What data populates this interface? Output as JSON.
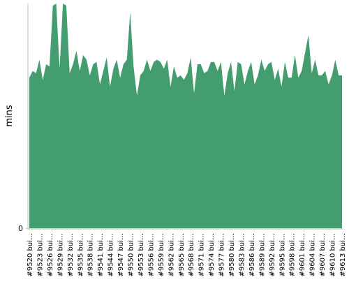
{
  "chart_data": {
    "type": "area",
    "y_label": "mins",
    "color": "#449d6e",
    "categories": [
      "#9520 bui…",
      null,
      null,
      "#9523 bui…",
      null,
      null,
      "#9526 bui…",
      null,
      null,
      "#9529 bui…",
      null,
      null,
      "#9532 bui…",
      null,
      null,
      "#9535 bui…",
      null,
      null,
      "#9538 bui…",
      null,
      null,
      "#9541 bui…",
      null,
      null,
      "#9544 bui…",
      null,
      null,
      "#9547 bui…",
      null,
      null,
      "#9550 bui…",
      null,
      null,
      "#9553 bui…",
      null,
      null,
      "#9556 bui…",
      null,
      null,
      "#9559 bui…",
      null,
      null,
      "#9562 bui…",
      null,
      null,
      "#9565 bui…",
      null,
      null,
      "#9568 bui…",
      null,
      null,
      "#9571 bui…",
      null,
      null,
      "#9574 bui…",
      null,
      null,
      "#9577 bui…",
      null,
      null,
      "#9580 bui…",
      null,
      null,
      "#9583 bui…",
      null,
      null,
      "#9586 bui…",
      null,
      null,
      "#9589 bui…",
      null,
      null,
      "#9592 bui…",
      null,
      null,
      "#9595 bui…",
      null,
      null,
      "#9598 bui…",
      null,
      null,
      "#9601 bui…",
      null,
      null,
      "#9604 bui…",
      null,
      null,
      "#9607 bui…",
      null,
      null,
      "#9610 bui…",
      null,
      null,
      "#9613 bui…"
    ],
    "values": [
      67,
      70,
      69,
      75,
      66,
      73,
      72,
      99,
      100,
      71,
      100,
      99,
      69,
      73,
      79,
      70,
      77,
      75,
      68,
      73,
      74,
      64,
      70,
      76,
      63,
      71,
      75,
      67,
      73,
      75,
      96,
      72,
      59,
      68,
      70,
      75,
      70,
      74,
      75,
      74,
      71,
      75,
      63,
      72,
      67,
      68,
      66,
      69,
      76,
      60,
      73,
      73,
      69,
      70,
      74,
      74,
      70,
      74,
      59,
      69,
      74,
      61,
      74,
      73,
      64,
      70,
      74,
      64,
      68,
      75,
      70,
      73,
      74,
      66,
      71,
      63,
      74,
      67,
      67,
      77,
      67,
      70,
      78,
      86,
      69,
      75,
      68,
      68,
      70,
      64,
      68,
      75,
      68,
      68
    ],
    "ylim": [
      0,
      100
    ],
    "yticks": [
      0
    ]
  }
}
